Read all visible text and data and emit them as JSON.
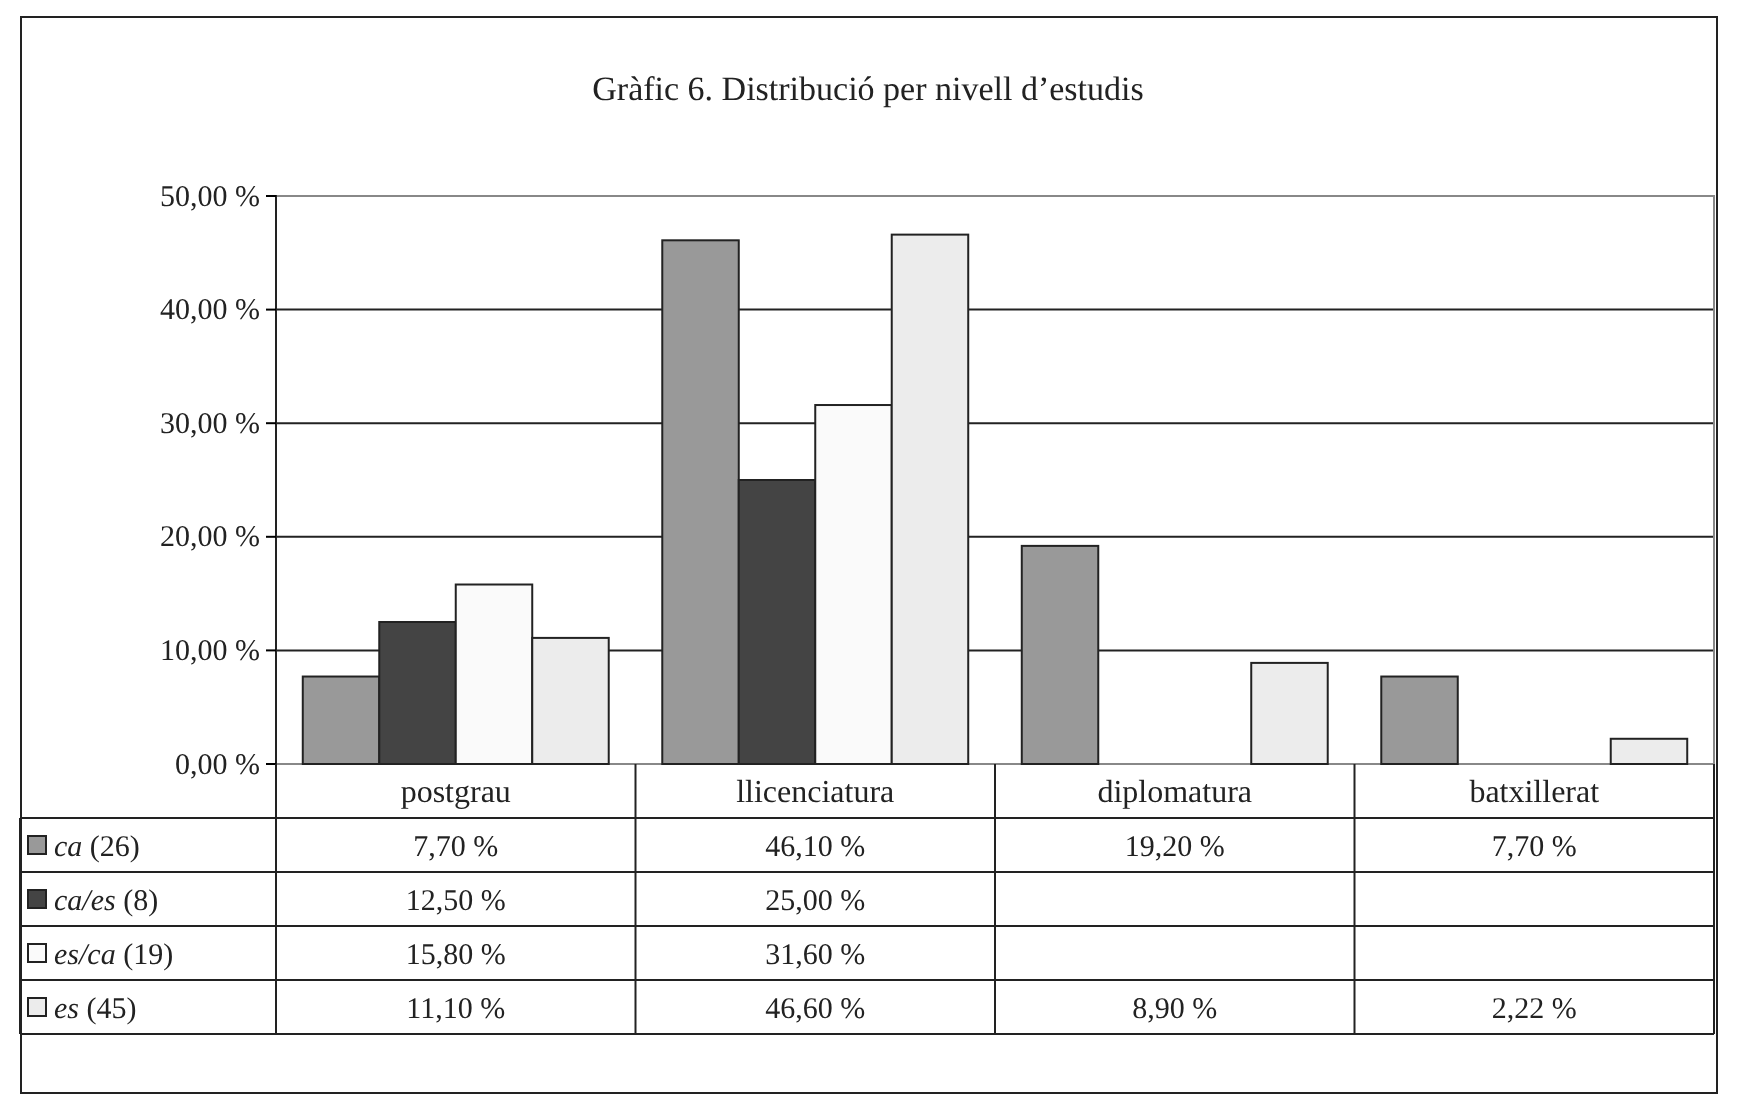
{
  "chart_data": {
    "type": "bar",
    "title": "Gràfic 6. Distribució per nivell d’estudis",
    "categories": [
      "postgrau",
      "llicenciatura",
      "diplomatura",
      "batxillerat"
    ],
    "series": [
      {
        "name": "ca (26)",
        "color": "#999999",
        "values": [
          7.7,
          46.1,
          19.2,
          7.7
        ],
        "value_labels": [
          "7,70 %",
          "46,10 %",
          "19,20 %",
          "7,70 %"
        ]
      },
      {
        "name": "ca/es (8)",
        "color": "#444444",
        "values": [
          12.5,
          25.0,
          null,
          null
        ],
        "value_labels": [
          "12,50 %",
          "25,00 %",
          null,
          null
        ]
      },
      {
        "name": "es/ca (19)",
        "color": "#fafafa",
        "values": [
          15.8,
          31.6,
          null,
          null
        ],
        "value_labels": [
          "15,80 %",
          "31,60 %",
          null,
          null
        ]
      },
      {
        "name": "es (45)",
        "color": "#ececec",
        "values": [
          11.1,
          46.6,
          8.9,
          2.22
        ],
        "value_labels": [
          "11,10 %",
          "46,60 %",
          "8,90 %",
          "2,22 %"
        ]
      }
    ],
    "ylim": [
      0,
      50
    ],
    "yticks": [
      {
        "value": 0,
        "label": "0,00 %"
      },
      {
        "value": 10,
        "label": "10,00 %"
      },
      {
        "value": 20,
        "label": "20,00 %"
      },
      {
        "value": 30,
        "label": "30,00 %"
      },
      {
        "value": 40,
        "label": "40,00 %"
      },
      {
        "value": 50,
        "label": "50,00 %"
      }
    ],
    "grid": "y",
    "legend": "bottom"
  }
}
